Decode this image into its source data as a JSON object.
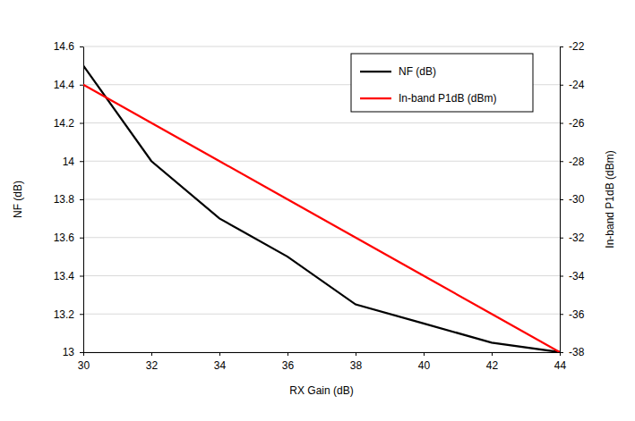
{
  "chart_data": {
    "type": "line",
    "x_label": "RX Gain (dB)",
    "y_label": "NF (dB)",
    "y2_label": "In-band P1dB (dBm)",
    "x": [
      30,
      32,
      34,
      36,
      38,
      40,
      42,
      44
    ],
    "xlim": [
      30,
      44
    ],
    "xticks": [
      30,
      32,
      34,
      36,
      38,
      40,
      42,
      44
    ],
    "ylim": [
      13,
      14.6
    ],
    "yticks": [
      13,
      13.2,
      13.4,
      13.6,
      13.8,
      14,
      14.2,
      14.4,
      14.6
    ],
    "y2lim": [
      -38,
      -22
    ],
    "y2ticks": [
      -38,
      -36,
      -34,
      -32,
      -30,
      -28,
      -26,
      -24,
      -22
    ],
    "grid": true,
    "legend": "top-right",
    "series": [
      {
        "name": "NF (dB)",
        "color": "#000000",
        "values": [
          14.5,
          14.0,
          13.7,
          13.5,
          13.25,
          13.15,
          13.05,
          13.0
        ]
      },
      {
        "name": "In-band P1dB (dBm)",
        "color": "#ff0000",
        "axis": "y2",
        "values": [
          -24,
          -26,
          -28,
          -30,
          -32,
          -34,
          -36,
          -38
        ]
      }
    ]
  }
}
